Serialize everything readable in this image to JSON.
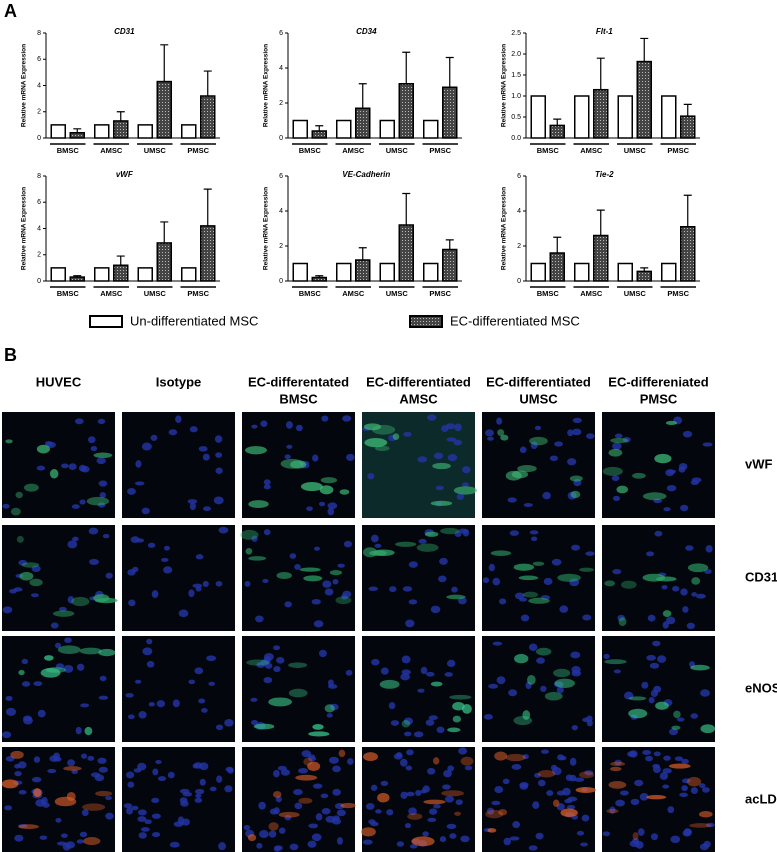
{
  "panel_a_label": "A",
  "chart_data": [
    {
      "type": "bar",
      "title": "CD31",
      "ylabel": "Relative mRNA Expression",
      "categories": [
        "BMSC",
        "AMSC",
        "UMSC",
        "PMSC"
      ],
      "ylim": [
        0,
        8
      ],
      "yticks": [
        0,
        2,
        4,
        6,
        8
      ],
      "series": [
        {
          "name": "Un-differentiated MSC",
          "color": "#ffffff",
          "values": [
            1,
            1,
            1,
            1
          ]
        },
        {
          "name": "EC-differentiated MSC",
          "color": "#444444",
          "values": [
            0.4,
            1.3,
            4.3,
            3.2
          ],
          "errors": [
            0.3,
            0.7,
            2.8,
            1.9
          ]
        }
      ]
    },
    {
      "type": "bar",
      "title": "CD34",
      "ylabel": "Relative mRNA Expression",
      "categories": [
        "BMSC",
        "AMSC",
        "UMSC",
        "PMSC"
      ],
      "ylim": [
        0,
        6
      ],
      "yticks": [
        0,
        2,
        4,
        6
      ],
      "series": [
        {
          "color": "#ffffff",
          "values": [
            1,
            1,
            1,
            1
          ]
        },
        {
          "color": "#444444",
          "values": [
            0.4,
            1.7,
            3.1,
            2.9
          ],
          "errors": [
            0.3,
            1.4,
            1.8,
            1.7
          ]
        }
      ]
    },
    {
      "type": "bar",
      "title": "Flt-1",
      "ylabel": "Relative mRNA Expression",
      "categories": [
        "BMSC",
        "AMSC",
        "UMSC",
        "PMSC"
      ],
      "ylim": [
        0,
        2.5
      ],
      "yticks": [
        {
          "value": 0,
          "label": "0.0"
        },
        {
          "value": 0.5,
          "label": "0.5"
        },
        {
          "value": 1,
          "label": "1.0"
        },
        {
          "value": 1.5,
          "label": "1.5"
        },
        {
          "value": 2,
          "label": "2.0"
        },
        {
          "value": 2.5,
          "label": "2.5"
        }
      ],
      "series": [
        {
          "color": "#ffffff",
          "values": [
            1,
            1,
            1,
            1
          ]
        },
        {
          "color": "#444444",
          "values": [
            0.3,
            1.15,
            1.82,
            0.52
          ],
          "errors": [
            0.15,
            0.75,
            0.55,
            0.28
          ]
        }
      ]
    },
    {
      "type": "bar",
      "title": "vWF",
      "ylabel": "Relative mRNA Expression",
      "categories": [
        "BMSC",
        "AMSC",
        "UMSC",
        "PMSC"
      ],
      "ylim": [
        0,
        8
      ],
      "yticks": [
        0,
        2,
        4,
        6,
        8
      ],
      "series": [
        {
          "color": "#ffffff",
          "values": [
            1,
            1,
            1,
            1
          ]
        },
        {
          "color": "#444444",
          "values": [
            0.3,
            1.2,
            2.9,
            4.2
          ],
          "errors": [
            0.1,
            0.7,
            1.6,
            2.8
          ]
        }
      ]
    },
    {
      "type": "bar",
      "title": "VE-Cadherin",
      "ylabel": "Relative mRNA Expression",
      "categories": [
        "BMSC",
        "AMSC",
        "UMSC",
        "PMSC"
      ],
      "ylim": [
        0,
        6
      ],
      "yticks": [
        0,
        2,
        4,
        6
      ],
      "series": [
        {
          "color": "#ffffff",
          "values": [
            1,
            1,
            1,
            1
          ]
        },
        {
          "color": "#444444",
          "values": [
            0.2,
            1.2,
            3.2,
            1.8
          ],
          "errors": [
            0.1,
            0.7,
            1.8,
            0.55
          ]
        }
      ]
    },
    {
      "type": "bar",
      "title": "Tie-2",
      "ylabel": "Relative mRNA Expression",
      "categories": [
        "BMSC",
        "AMSC",
        "UMSC",
        "PMSC"
      ],
      "ylim": [
        0,
        6
      ],
      "yticks": [
        0,
        2,
        4,
        6
      ],
      "series": [
        {
          "color": "#ffffff",
          "values": [
            1,
            1,
            1,
            1
          ]
        },
        {
          "color": "#444444",
          "values": [
            1.6,
            2.6,
            0.55,
            3.1
          ],
          "errors": [
            0.9,
            1.45,
            0.2,
            1.8
          ]
        }
      ]
    }
  ],
  "panel_b": {
    "label": "B",
    "columns": [
      [
        "HUVEC"
      ],
      [
        "Isotype"
      ],
      [
        "EC-differentated",
        "BMSC"
      ],
      [
        "EC-differentiated",
        "AMSC"
      ],
      [
        "EC-differentiated",
        "UMSC"
      ],
      [
        "EC-differeniated",
        "PMSC"
      ]
    ],
    "rows": [
      "vWF",
      "CD31",
      "eNOS",
      "acLDL"
    ]
  }
}
